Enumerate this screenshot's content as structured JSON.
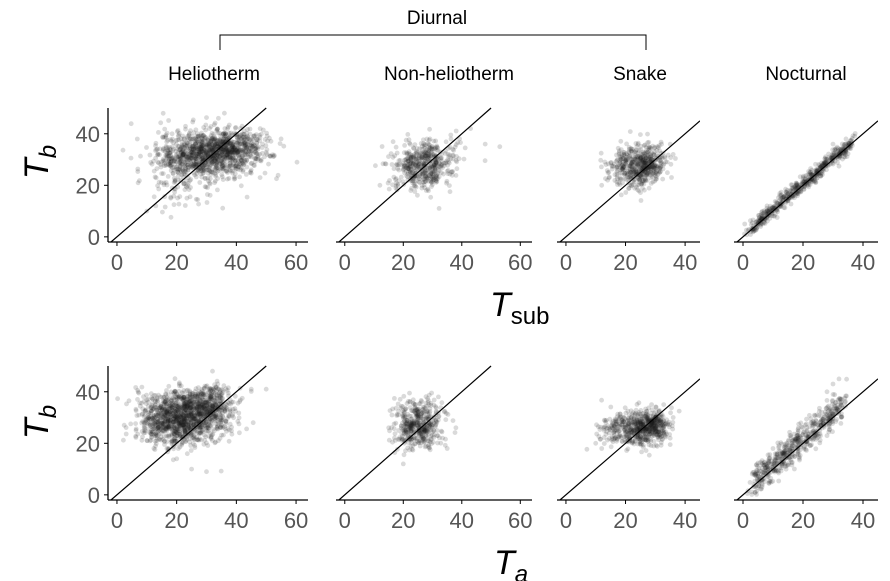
{
  "figure": {
    "group_label": "Diurnal",
    "columns": [
      "Heliotherm",
      "Non-heliotherm",
      "Snake",
      "Nocturnal"
    ],
    "row_titles": [
      {
        "main": "T",
        "sub": "b",
        "sub_italic": true
      },
      {
        "main": "T",
        "sub": "b",
        "sub_italic": true
      }
    ],
    "x_titles": [
      {
        "main": "T",
        "sub": "sub",
        "sub_italic": false
      },
      {
        "main": "T",
        "sub": "a",
        "sub_italic": true
      }
    ],
    "colors": {
      "points": "#1a1a1a",
      "axis": "#000000",
      "tick_text": "#555555"
    }
  },
  "chart_data": [
    {
      "type": "scatter",
      "row": "Tsub",
      "panel": "Heliotherm",
      "xlabel": "",
      "ylabel": "",
      "xlim": [
        -3,
        64
      ],
      "ylim": [
        -2,
        50
      ],
      "xticks": [
        0,
        20,
        40,
        60
      ],
      "yticks": [
        0,
        20,
        40
      ],
      "reference_line": "y = x",
      "clusters": [
        {
          "cx": 30,
          "cy": 32,
          "sx": 8,
          "sy": 4.5,
          "n": 900
        },
        {
          "cx": 40,
          "cy": 35,
          "sx": 6,
          "sy": 3.5,
          "n": 300
        },
        {
          "cx": 22,
          "cy": 25,
          "sx": 6,
          "sy": 7,
          "n": 140
        }
      ],
      "outliers": [
        [
          10,
          10
        ],
        [
          13,
          12
        ],
        [
          18,
          15
        ],
        [
          36,
          48
        ],
        [
          34,
          46
        ],
        [
          48,
          42
        ],
        [
          55,
          38
        ]
      ]
    },
    {
      "type": "scatter",
      "row": "Tsub",
      "panel": "Non-heliotherm",
      "xlabel": "",
      "ylabel": "",
      "xlim": [
        -3,
        64
      ],
      "ylim": [
        -2,
        50
      ],
      "xticks": [
        0,
        20,
        40,
        60
      ],
      "yticks": [
        0,
        20,
        40
      ],
      "reference_line": "y = x",
      "clusters": [
        {
          "cx": 26,
          "cy": 27,
          "sx": 5,
          "sy": 4.5,
          "n": 380
        },
        {
          "cx": 30,
          "cy": 31,
          "sx": 6,
          "sy": 4,
          "n": 120
        }
      ],
      "outliers": [
        [
          12,
          20
        ],
        [
          48,
          36
        ],
        [
          53,
          35
        ],
        [
          43,
          42
        ]
      ]
    },
    {
      "type": "scatter",
      "row": "Tsub",
      "panel": "Snake",
      "xlabel": "",
      "ylabel": "",
      "xlim": [
        -3,
        45
      ],
      "ylim": [
        -2,
        50
      ],
      "xticks": [
        0,
        20,
        40
      ],
      "yticks": [
        0,
        20,
        40
      ],
      "reference_line": "y = x",
      "clusters": [
        {
          "cx": 24,
          "cy": 27,
          "sx": 4.5,
          "sy": 4,
          "n": 420
        },
        {
          "cx": 28,
          "cy": 30,
          "sx": 3,
          "sy": 3,
          "n": 120
        }
      ],
      "outliers": [
        [
          12,
          20
        ],
        [
          14,
          22
        ],
        [
          35,
          36
        ],
        [
          36,
          32
        ]
      ]
    },
    {
      "type": "scatter",
      "row": "Tsub",
      "panel": "Nocturnal",
      "xlabel": "",
      "ylabel": "",
      "xlim": [
        -3,
        45
      ],
      "ylim": [
        -2,
        50
      ],
      "xticks": [
        0,
        20,
        40
      ],
      "yticks": [
        0,
        20,
        40
      ],
      "reference_line": "y = x",
      "linear": {
        "x0": 3,
        "x1": 36,
        "slope": 1.0,
        "intercept": 0.5,
        "noise": 1.6,
        "n": 550
      },
      "outliers": [
        [
          8,
          12
        ],
        [
          30,
          36
        ],
        [
          34,
          31
        ]
      ]
    },
    {
      "type": "scatter",
      "row": "Ta",
      "panel": "Heliotherm",
      "xlabel": "",
      "ylabel": "",
      "xlim": [
        -3,
        64
      ],
      "ylim": [
        -2,
        50
      ],
      "xticks": [
        0,
        20,
        40,
        60
      ],
      "yticks": [
        0,
        20,
        40
      ],
      "reference_line": "y = x",
      "clusters": [
        {
          "cx": 22,
          "cy": 30,
          "sx": 7,
          "sy": 5,
          "n": 1000
        },
        {
          "cx": 30,
          "cy": 35,
          "sx": 5,
          "sy": 4,
          "n": 350
        },
        {
          "cx": 15,
          "cy": 28,
          "sx": 4,
          "sy": 5,
          "n": 150
        }
      ],
      "outliers": [
        [
          45,
          41
        ],
        [
          50,
          41
        ],
        [
          25,
          10
        ],
        [
          30,
          9
        ],
        [
          32,
          48
        ],
        [
          20,
          14
        ]
      ]
    },
    {
      "type": "scatter",
      "row": "Ta",
      "panel": "Non-heliotherm",
      "xlabel": "",
      "ylabel": "",
      "xlim": [
        -3,
        64
      ],
      "ylim": [
        -2,
        50
      ],
      "xticks": [
        0,
        20,
        40,
        60
      ],
      "yticks": [
        0,
        20,
        40
      ],
      "reference_line": "y = x",
      "clusters": [
        {
          "cx": 25,
          "cy": 27,
          "sx": 4,
          "sy": 5,
          "n": 450
        }
      ],
      "outliers": [
        [
          15,
          26
        ],
        [
          35,
          18
        ],
        [
          38,
          26
        ],
        [
          20,
          12
        ],
        [
          32,
          38
        ]
      ]
    },
    {
      "type": "scatter",
      "row": "Ta",
      "panel": "Snake",
      "xlabel": "",
      "ylabel": "",
      "xlim": [
        -3,
        45
      ],
      "ylim": [
        -2,
        50
      ],
      "xticks": [
        0,
        20,
        40
      ],
      "yticks": [
        0,
        20,
        40
      ],
      "reference_line": "y = x",
      "clusters": [
        {
          "cx": 25,
          "cy": 26,
          "sx": 5,
          "sy": 3.5,
          "n": 480
        },
        {
          "cx": 30,
          "cy": 28,
          "sx": 2,
          "sy": 2,
          "n": 120
        },
        {
          "cx": 16,
          "cy": 24,
          "sx": 3,
          "sy": 3,
          "n": 60
        }
      ],
      "outliers": [
        [
          12,
          18
        ],
        [
          10,
          20
        ],
        [
          35,
          22
        ],
        [
          36,
          30
        ]
      ]
    },
    {
      "type": "scatter",
      "row": "Ta",
      "panel": "Nocturnal",
      "xlabel": "",
      "ylabel": "",
      "xlim": [
        -3,
        45
      ],
      "ylim": [
        -2,
        50
      ],
      "xticks": [
        0,
        20,
        40
      ],
      "yticks": [
        0,
        20,
        40
      ],
      "reference_line": "y = x",
      "linear": {
        "x0": 3,
        "x1": 33,
        "slope": 1.0,
        "intercept": 1.5,
        "noise": 3.2,
        "n": 550
      },
      "outliers": [
        [
          30,
          43
        ],
        [
          32,
          45
        ],
        [
          28,
          40
        ],
        [
          10,
          18
        ],
        [
          34,
          36
        ]
      ]
    }
  ]
}
